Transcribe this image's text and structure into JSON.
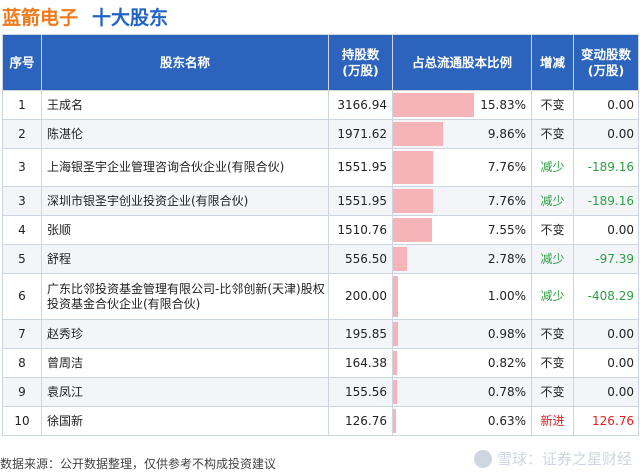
{
  "header": {
    "company": "蓝箭电子",
    "subtitle": "十大股东"
  },
  "columns": {
    "idx": "序号",
    "name": "股东名称",
    "shares_line1": "持股数",
    "shares_line2": "(万股)",
    "ratio": "占总流通股本比例",
    "change": "增减",
    "delta_line1": "变动股数",
    "delta_line2": "(万股)"
  },
  "rows": [
    {
      "idx": "1",
      "name": "王成名",
      "shares": "3166.94",
      "ratio": "15.83%",
      "ratio_value": 15.83,
      "change": "不变",
      "delta": "0.00",
      "kind": "flat"
    },
    {
      "idx": "2",
      "name": "陈湛伦",
      "shares": "1971.62",
      "ratio": "9.86%",
      "ratio_value": 9.86,
      "change": "不变",
      "delta": "0.00",
      "kind": "flat"
    },
    {
      "idx": "3",
      "name": "上海银圣宇企业管理咨询合伙企业(有限合伙)",
      "shares": "1551.95",
      "ratio": "7.76%",
      "ratio_value": 7.76,
      "change": "减少",
      "delta": "-189.16",
      "kind": "down"
    },
    {
      "idx": "3",
      "name": "深圳市银圣宇创业投资企业(有限合伙)",
      "shares": "1551.95",
      "ratio": "7.76%",
      "ratio_value": 7.76,
      "change": "减少",
      "delta": "-189.16",
      "kind": "down"
    },
    {
      "idx": "4",
      "name": "张顺",
      "shares": "1510.76",
      "ratio": "7.55%",
      "ratio_value": 7.55,
      "change": "不变",
      "delta": "0.00",
      "kind": "flat"
    },
    {
      "idx": "5",
      "name": "舒程",
      "shares": "556.50",
      "ratio": "2.78%",
      "ratio_value": 2.78,
      "change": "减少",
      "delta": "-97.39",
      "kind": "down"
    },
    {
      "idx": "6",
      "name": "广东比邻投资基金管理有限公司-比邻创新(天津)股权投资基金合伙企业(有限合伙)",
      "shares": "200.00",
      "ratio": "1.00%",
      "ratio_value": 1.0,
      "change": "减少",
      "delta": "-408.29",
      "kind": "down"
    },
    {
      "idx": "7",
      "name": "赵秀珍",
      "shares": "195.85",
      "ratio": "0.98%",
      "ratio_value": 0.98,
      "change": "不变",
      "delta": "0.00",
      "kind": "flat"
    },
    {
      "idx": "8",
      "name": "曾周洁",
      "shares": "164.38",
      "ratio": "0.82%",
      "ratio_value": 0.82,
      "change": "不变",
      "delta": "0.00",
      "kind": "flat"
    },
    {
      "idx": "9",
      "name": "袁凤江",
      "shares": "155.56",
      "ratio": "0.78%",
      "ratio_value": 0.78,
      "change": "不变",
      "delta": "0.00",
      "kind": "flat"
    },
    {
      "idx": "10",
      "name": "徐国新",
      "shares": "126.76",
      "ratio": "0.63%",
      "ratio_value": 0.63,
      "change": "新进",
      "delta": "126.76",
      "kind": "up"
    }
  ],
  "bar_max_percent": 27,
  "footer": {
    "source": "数据来源：公开数据整理，仅供参考不构成投资建议"
  },
  "watermark": {
    "text": "雪球：证券之星财经"
  },
  "colors": {
    "header_bg": "#2c64bd",
    "bar": "#f6b3b8",
    "up": "#e02020",
    "down": "#2ea043",
    "company": "#f07a1a",
    "subtitle": "#1f63c6"
  }
}
